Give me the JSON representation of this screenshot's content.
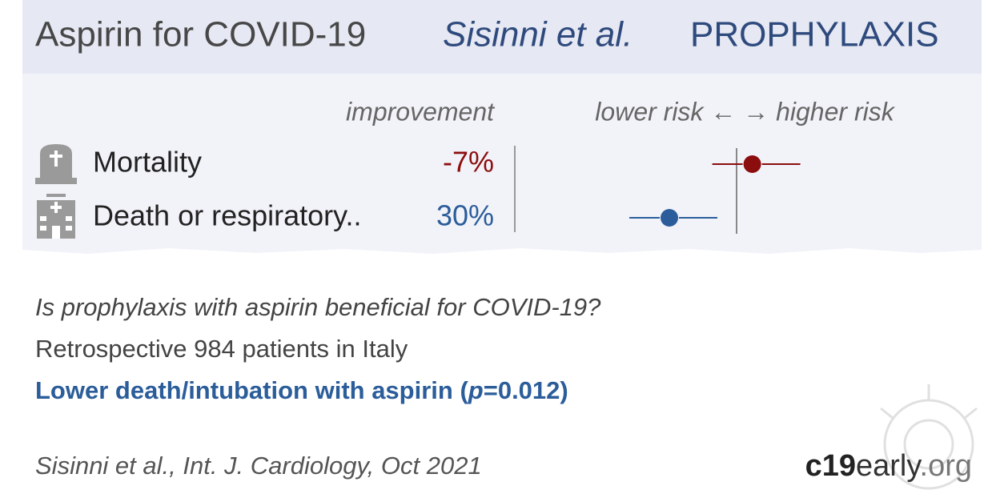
{
  "header": {
    "title": "Aspirin for COVID-19",
    "authors": "Sisinni et al.",
    "category": "PROPHYLAXIS"
  },
  "results": {
    "improvement_heading": "improvement",
    "risk_heading": "lower risk ← → higher risk",
    "rows": [
      {
        "label": "Mortality",
        "improvement": {
          "value": -7,
          "label": "-7%"
        },
        "color": "#8b0d0d"
      },
      {
        "label": "Death or respiratory..",
        "improvement": {
          "value": 30,
          "label": "30%"
        },
        "color": "#2b5d9a"
      }
    ]
  },
  "summary": {
    "question": "Is prophylaxis with aspirin beneficial for COVID-19?",
    "design": "Retrospective 984 patients in Italy",
    "conclusion": [
      "Lower death/intubation with aspirin (",
      "p",
      "=0.012)"
    ]
  },
  "footer": {
    "citation": "Sisinni et al., Int. J. Cardiology, Oct 2021",
    "site": [
      "c19",
      "early",
      ".org"
    ]
  }
}
